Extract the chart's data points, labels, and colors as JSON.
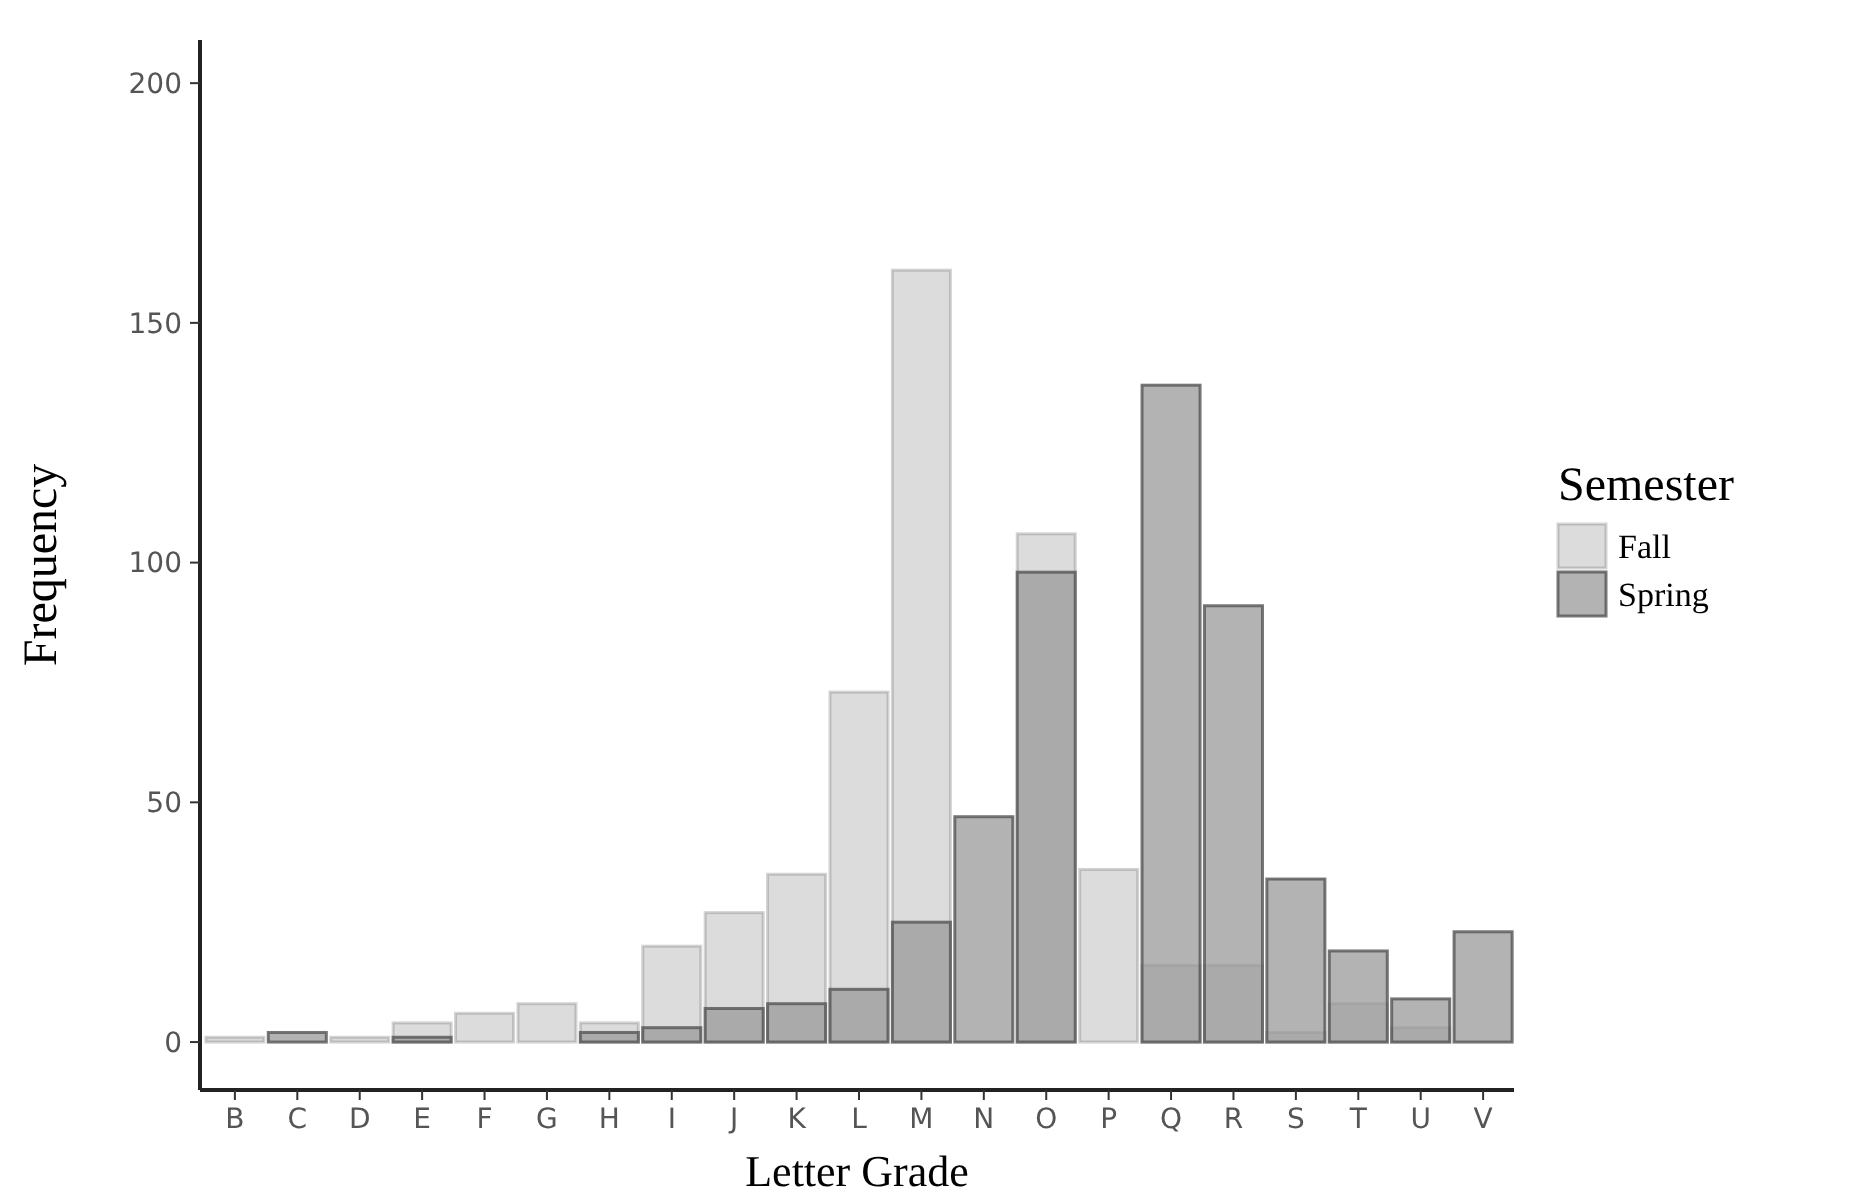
{
  "chart_data": {
    "type": "bar",
    "xlabel": "Letter Grade",
    "ylabel": "Frequency",
    "legend_title": "Semester",
    "legend": "right",
    "categories": [
      "B",
      "C",
      "D",
      "E",
      "F",
      "G",
      "H",
      "I",
      "J",
      "K",
      "L",
      "M",
      "N",
      "O",
      "P",
      "Q",
      "R",
      "S",
      "T",
      "U",
      "V"
    ],
    "series": [
      {
        "name": "Fall",
        "color": "#dcdcdc",
        "values": [
          1,
          null,
          1,
          4,
          6,
          8,
          4,
          20,
          27,
          35,
          73,
          161,
          null,
          106,
          36,
          16,
          16,
          2,
          8,
          3,
          null
        ]
      },
      {
        "name": "Spring",
        "color": "#9a9a9a",
        "values": [
          null,
          2,
          null,
          1,
          null,
          null,
          2,
          3,
          7,
          8,
          11,
          25,
          47,
          98,
          null,
          137,
          91,
          34,
          19,
          9,
          23
        ]
      }
    ],
    "ylim": [
      -10,
      209
    ],
    "yticks": [
      0,
      50,
      100,
      150,
      200
    ],
    "grid": false
  }
}
